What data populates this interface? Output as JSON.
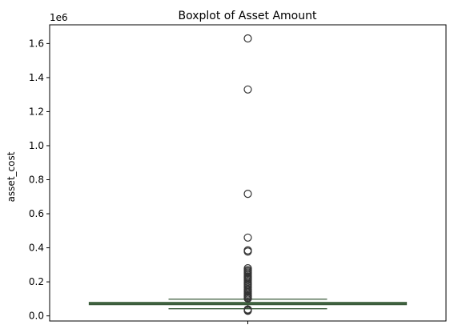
{
  "chart_data": {
    "type": "boxplot",
    "title": "Boxplot of Asset Amount",
    "xlabel": "",
    "ylabel": "asset_cost",
    "y_offset_label": "1e6",
    "ylim": [
      -0.03,
      1.71
    ],
    "y_ticks": [
      0.0,
      0.2,
      0.4,
      0.6,
      0.8,
      1.0,
      1.2,
      1.4,
      1.6
    ],
    "y_tick_labels": [
      "0.0",
      "0.2",
      "0.4",
      "0.6",
      "0.8",
      "1.0",
      "1.2",
      "1.4",
      "1.6"
    ],
    "grid": false,
    "box": {
      "color": "#3a5a3a",
      "whisker_low": 0.042,
      "q1": 0.066,
      "median": 0.071,
      "q3": 0.079,
      "whisker_high": 0.098
    },
    "outliers": [
      1.63,
      1.33,
      0.717,
      0.46,
      0.385,
      0.378,
      0.28,
      0.27,
      0.262,
      0.255,
      0.248,
      0.24,
      0.232,
      0.225,
      0.218,
      0.21,
      0.2,
      0.19,
      0.182,
      0.175,
      0.165,
      0.155,
      0.148,
      0.14,
      0.132,
      0.125,
      0.118,
      0.112,
      0.106,
      0.102,
      0.038,
      0.034,
      0.03
    ]
  }
}
